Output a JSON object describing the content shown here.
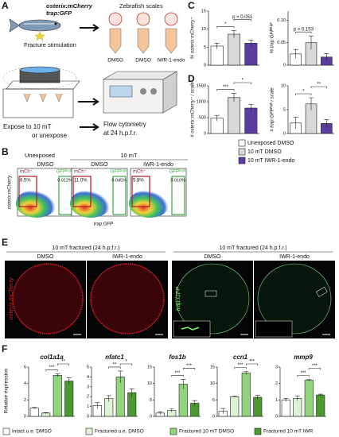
{
  "labels": {
    "a": "A",
    "b": "B",
    "c": "C",
    "d": "D",
    "e": "E",
    "f": "F"
  },
  "panel_a": {
    "fish_line_1": "osterix:mCherry",
    "fish_line_2": "trap:GFP",
    "fracture": "Fracture stimulation",
    "scales": "Zebrafish scales",
    "tubes": [
      "DMSO",
      "DMSO",
      "IWR-1-endo"
    ],
    "expose_1": "Expose to 10 mT",
    "expose_2": "or unexpose",
    "flow_1": "Flow cytometry",
    "flow_2": "at 24 h.p.f.r."
  },
  "panel_b": {
    "group_1": "Unexposed",
    "group_2": "10 mT",
    "y_axis": "osterix:mCherry",
    "x_axis": "trap:GFP",
    "plots": [
      {
        "condition": "DMSO",
        "gates": [
          {
            "name": "mCh⁺",
            "value": "6.5%"
          },
          {
            "name": "GFPʰⁱᵍʰ",
            "value": "0.012%"
          }
        ]
      },
      {
        "condition": "DMSO",
        "gates": [
          {
            "name": "mCh⁺",
            "value": "11.0%"
          },
          {
            "name": "GFPʰⁱᵍʰ",
            "value": "0.045%"
          }
        ]
      },
      {
        "condition": "IWR-1-endo",
        "gates": [
          {
            "name": "mCh⁺",
            "value": "5.8%"
          },
          {
            "name": "GFPʰⁱᵍʰ",
            "value": "0.010%"
          }
        ]
      }
    ]
  },
  "panel_e": {
    "title_left": "10 mT fractured (24 h.p.f.r.)",
    "title_right": "10 mT fractured (24 h.p.f.r.)",
    "conditions_left": [
      "DMSO",
      "IWR-1-endo"
    ],
    "conditions_right": [
      "DMSO",
      "IWR-1-endo"
    ],
    "channel_left": "osterix:mCherry",
    "channel_right": "trap:GFP"
  },
  "panel_f": {
    "ylabel": "Relative expression"
  },
  "legend_cd": {
    "names": [
      "Unexposed DMSO",
      "10 mT DMSO",
      "10 mT IWR-1-endo"
    ],
    "colors": [
      "#ffffff",
      "#d9d9d9",
      "#5a3d9e"
    ]
  },
  "legend_f": {
    "names": [
      "Intact u.e. DMSO",
      "Fractured u.e. DMSO",
      "Fractured 10 mT DMSO",
      "Fractured 10 mT IWR"
    ],
    "colors": [
      "#ffffff",
      "#dff2d6",
      "#92d47c",
      "#4b9a30"
    ]
  },
  "chart_data": [
    {
      "type": "bar",
      "ylabel": "% osterix:mCherry⁺",
      "values": [
        5.3,
        8.6,
        6.1
      ],
      "errors": [
        0.8,
        1.0,
        0.8
      ],
      "ylim": [
        0,
        15
      ],
      "yticks": [
        0,
        5,
        10,
        15
      ],
      "annotations": [
        "*",
        "p = 0.051"
      ]
    },
    {
      "type": "bar",
      "ylabel": "% trap:GFPʰⁱᵍʰ",
      "values": [
        0.025,
        0.05,
        0.018
      ],
      "errors": [
        0.01,
        0.015,
        0.008
      ],
      "ylim": [
        0,
        0.12
      ],
      "yticks": [
        0,
        0.05,
        {
          "value": 0.1,
          "label": "0.10"
        }
      ],
      "annotations": [
        "p = 0.153"
      ]
    },
    {
      "type": "bar",
      "ylabel": "# osterix:mCherry⁺ / scale",
      "values": [
        480,
        1130,
        800
      ],
      "errors": [
        90,
        130,
        110
      ],
      "ylim": [
        0,
        1500
      ],
      "yticks": [
        0,
        500,
        1000,
        1500
      ],
      "annotations": [
        "***",
        "*"
      ]
    },
    {
      "type": "bar",
      "ylabel": "# trap:GFPʰⁱᵍʰ / scale",
      "values": [
        2.2,
        6.2,
        2.1
      ],
      "errors": [
        1.2,
        1.3,
        0.8
      ],
      "ylim": [
        0,
        10
      ],
      "yticks": [
        0,
        5,
        10
      ],
      "annotations": [
        "*",
        "**"
      ]
    },
    {
      "type": "bar",
      "title": "col1a1a",
      "values": [
        1,
        0.4,
        5,
        4.3
      ],
      "errors": [
        0.1,
        0.05,
        0.2,
        0.4
      ],
      "ylim": [
        0,
        6
      ],
      "yticks": [
        0,
        2,
        4,
        6
      ],
      "annotations": [
        "***",
        "**"
      ]
    },
    {
      "type": "bar",
      "title": "nfatc1",
      "values": [
        1.1,
        1.8,
        4,
        2.4
      ],
      "errors": [
        0.3,
        0.3,
        0.6,
        0.4
      ],
      "ylim": [
        0,
        5
      ],
      "yticks": [
        0,
        1,
        2,
        3,
        4,
        5
      ],
      "annotations": [
        "**",
        "*"
      ]
    },
    {
      "type": "bar",
      "title": "fos1b",
      "values": [
        1,
        1.8,
        9.8,
        4
      ],
      "errors": [
        0.4,
        0.5,
        1.5,
        0.8
      ],
      "ylim": [
        0,
        15
      ],
      "yticks": [
        0,
        5,
        10,
        15
      ],
      "annotations": [
        "***",
        "***"
      ]
    },
    {
      "type": "bar",
      "title": "ccn1",
      "values": [
        1.6,
        6,
        13.2,
        5.8
      ],
      "errors": [
        0.8,
        0.2,
        0.5,
        0.6
      ],
      "ylim": [
        0,
        15
      ],
      "yticks": [
        0,
        5,
        10,
        15
      ],
      "annotations": [
        "***",
        "***"
      ]
    },
    {
      "type": "bar",
      "title": "mmp9",
      "values": [
        1,
        1.1,
        2.2,
        1.3
      ],
      "errors": [
        0.1,
        0.15,
        0.05,
        0.05
      ],
      "ylim": [
        0,
        3
      ],
      "yticks": [
        0,
        1,
        2,
        3
      ],
      "annotations": [
        "***",
        "***"
      ]
    }
  ]
}
